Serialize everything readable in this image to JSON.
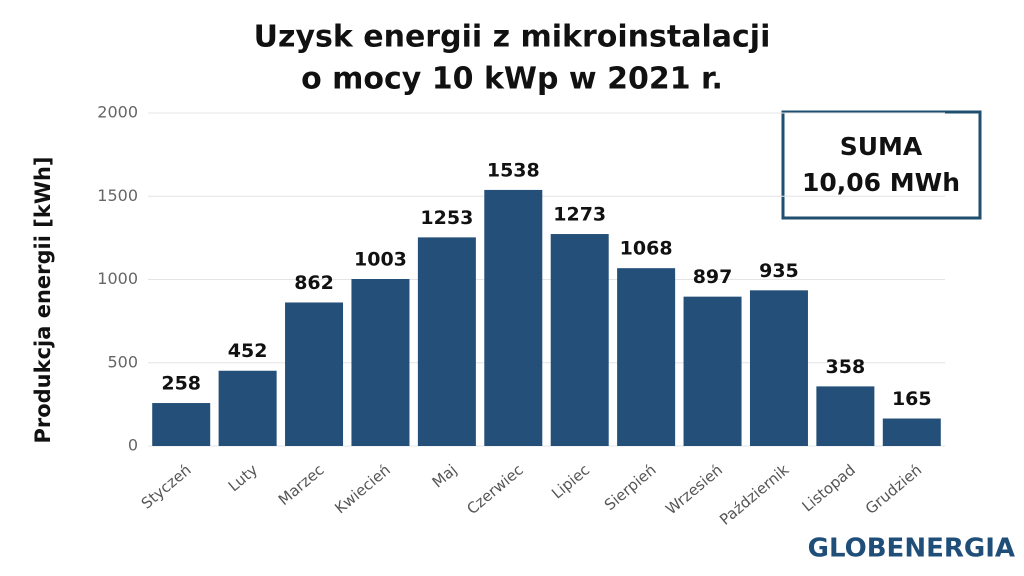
{
  "chart_data": {
    "type": "bar",
    "title": [
      "Uzysk energii z mikroinstalacji",
      "o mocy 10 kWp w 2021 r."
    ],
    "ylabel": "Produkcja energii [kWh]",
    "categories": [
      "Styczeń",
      "Luty",
      "Marzec",
      "Kwiecień",
      "Maj",
      "Czerwiec",
      "Lipiec",
      "Sierpień",
      "Wrzesień",
      "Październik",
      "Listopad",
      "Grudzień"
    ],
    "values": [
      258,
      452,
      862,
      1003,
      1253,
      1538,
      1273,
      1068,
      897,
      935,
      358,
      165
    ],
    "color": "#234f78",
    "ylim": [
      0,
      2000
    ],
    "yticks": [
      0,
      500,
      1000,
      1500,
      2000
    ],
    "grid": true,
    "annotation": [
      "SUMA",
      "10,06 MWh"
    ],
    "logo": "GLOBENERGIA"
  }
}
